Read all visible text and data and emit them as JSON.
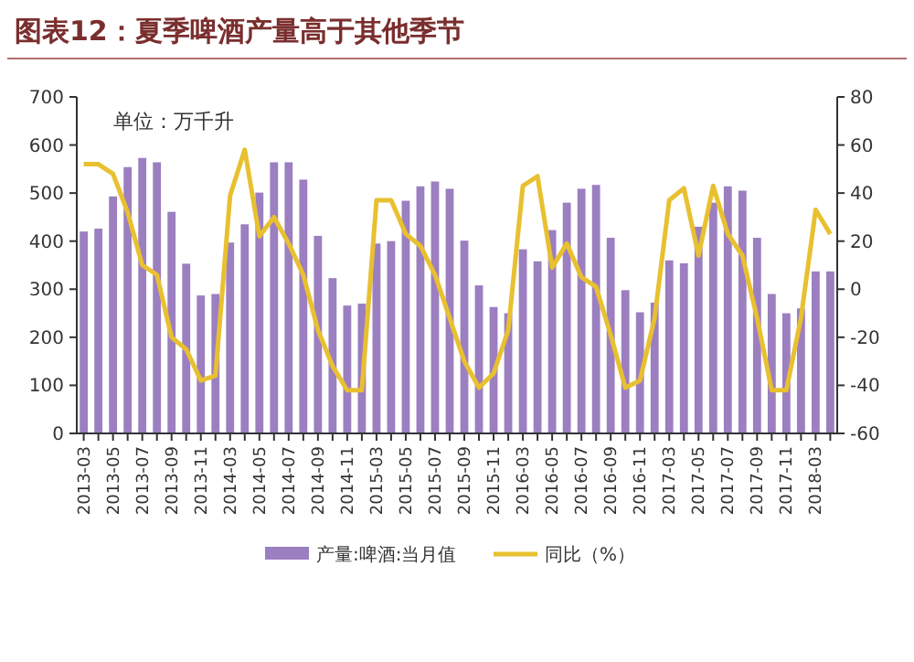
{
  "chart_data": {
    "type": "bar",
    "title": "图表12：夏季啤酒产量高于其他季节",
    "annotations": [
      "单位：万千升"
    ],
    "categories": [
      "2013-03",
      null,
      "2013-05",
      null,
      "2013-07",
      null,
      "2013-09",
      null,
      "2013-11",
      null,
      "2014-03",
      null,
      "2014-05",
      null,
      "2014-07",
      null,
      "2014-09",
      null,
      "2014-11",
      null,
      "2015-03",
      null,
      "2015-05",
      null,
      "2015-07",
      null,
      "2015-09",
      null,
      "2015-11",
      null,
      "2016-03",
      null,
      "2016-05",
      null,
      "2016-07",
      null,
      "2016-09",
      null,
      "2016-11",
      null,
      "2017-03",
      null,
      "2017-05",
      null,
      "2017-07",
      null,
      "2017-09",
      null,
      "2017-11",
      null,
      "2018-03",
      null
    ],
    "series": [
      {
        "name": "产量:啤酒:当月值",
        "color": "#9b7fc0",
        "values": [
          420,
          426,
          493,
          554,
          573,
          564,
          461,
          353,
          287,
          290,
          397,
          435,
          501,
          564,
          564,
          528,
          411,
          323,
          266,
          270,
          395,
          400,
          484,
          514,
          524,
          509,
          401,
          308,
          263,
          250,
          383,
          358,
          423,
          480,
          509,
          517,
          407,
          298,
          252,
          272,
          360,
          354,
          430,
          480,
          514,
          505,
          407,
          290,
          250,
          260,
          337,
          337
        ]
      },
      {
        "name": "同比（%）",
        "type": "line",
        "axis": "y2",
        "color": "#e8c030",
        "values": [
          52,
          52,
          48,
          32,
          10,
          6,
          -20,
          -25,
          -38,
          -36,
          39,
          58,
          22,
          30,
          19,
          6,
          -17,
          -32,
          -42,
          -42,
          37,
          37,
          23,
          18,
          6,
          -12,
          -30,
          -41,
          -35,
          -17,
          43,
          47,
          9,
          19,
          5,
          1,
          -19,
          -41,
          -38,
          -12,
          37,
          42,
          14,
          43,
          23,
          14,
          -12,
          -42,
          -42,
          -12,
          33,
          23
        ]
      }
    ],
    "ylim": [
      0,
      700
    ],
    "yticks": [
      0,
      100,
      200,
      300,
      400,
      500,
      600,
      700
    ],
    "y2lim": [
      -60,
      80
    ],
    "y2ticks": [
      -60,
      -40,
      -20,
      0,
      20,
      40,
      60,
      80
    ],
    "grid": false,
    "legend": "bottom",
    "line_style": "solid",
    "marker": "none"
  }
}
